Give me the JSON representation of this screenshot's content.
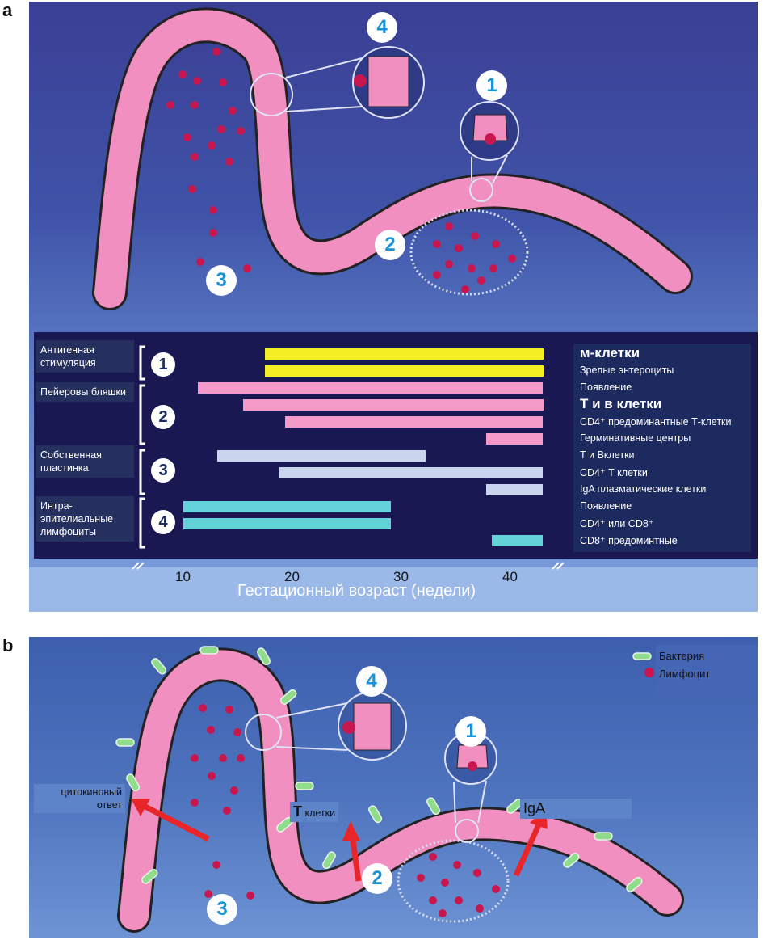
{
  "panels": {
    "a_label": "a",
    "b_label": "b"
  },
  "panel_a": {
    "markers": [
      "1",
      "2",
      "3",
      "4"
    ],
    "timeline": {
      "row_labels": [
        "Антигенная стимуляция",
        "Пейеровы бляшки",
        "Собственная пластинка",
        "Интра-эпителиальные лимфоциты"
      ],
      "row_numbers": [
        "1",
        "2",
        "3",
        "4"
      ],
      "descriptions": [
        {
          "text": "м-клетки",
          "big": true
        },
        {
          "text": "Зрелые энтероциты",
          "big": false
        },
        {
          "text": "Появление",
          "big": false
        },
        {
          "text": "Т и   в клетки",
          "big": true
        },
        {
          "text": "CD4⁺ предоминантные Т-клетки",
          "big": false
        },
        {
          "text": "Герминативные центры",
          "big": false
        },
        {
          "text": "Т   и   Вклетки",
          "big": false
        },
        {
          "text": "CD4⁺ Т клетки",
          "big": false
        },
        {
          "text": "IgA плазматические клетки",
          "big": false
        },
        {
          "text": "Появление",
          "big": false
        },
        {
          "text": "CD4⁺ или CD8⁺",
          "big": false
        },
        {
          "text": "CD8⁺ предоминтные",
          "big": false
        }
      ],
      "bars": [
        {
          "start": 17.5,
          "end": 43,
          "color": "#f3ef24"
        },
        {
          "start": 17.5,
          "end": 43,
          "color": "#f3ef24"
        },
        {
          "start": 11.3,
          "end": 43,
          "color": "#f49ac8"
        },
        {
          "start": 15.5,
          "end": 43,
          "color": "#f49ac8"
        },
        {
          "start": 19.3,
          "end": 43,
          "color": "#f49ac8"
        },
        {
          "start": 37.8,
          "end": 43,
          "color": "#f49ac8"
        },
        {
          "start": 13.1,
          "end": 32.2,
          "color": "#c9d4ee"
        },
        {
          "start": 18.8,
          "end": 43,
          "color": "#c9d4ee"
        },
        {
          "start": 37.8,
          "end": 43,
          "color": "#c9d4ee"
        },
        {
          "start": 10,
          "end": 29,
          "color": "#63d3d9"
        },
        {
          "start": 10,
          "end": 29,
          "color": "#63d3d9"
        },
        {
          "start": 38.3,
          "end": 43,
          "color": "#63d3d9"
        }
      ],
      "axis_ticks": [
        "10",
        "20",
        "30",
        "40"
      ],
      "axis_title": "Гестационный возраст (недели)"
    }
  },
  "panel_b": {
    "markers": [
      "1",
      "2",
      "3",
      "4"
    ],
    "legend": {
      "bacteria": "Бактерия",
      "lymphocyte": "Лимфоцит"
    },
    "annotations": {
      "cytokine": "цитокиновый ответ",
      "t_cells_letter": "Т",
      "t_cells_word": "клетки",
      "iga": "IgA"
    },
    "colors": {
      "arrow": "#e8262a",
      "epithelium": "#f08fc0",
      "lymphocyte": "#c8174f"
    }
  }
}
